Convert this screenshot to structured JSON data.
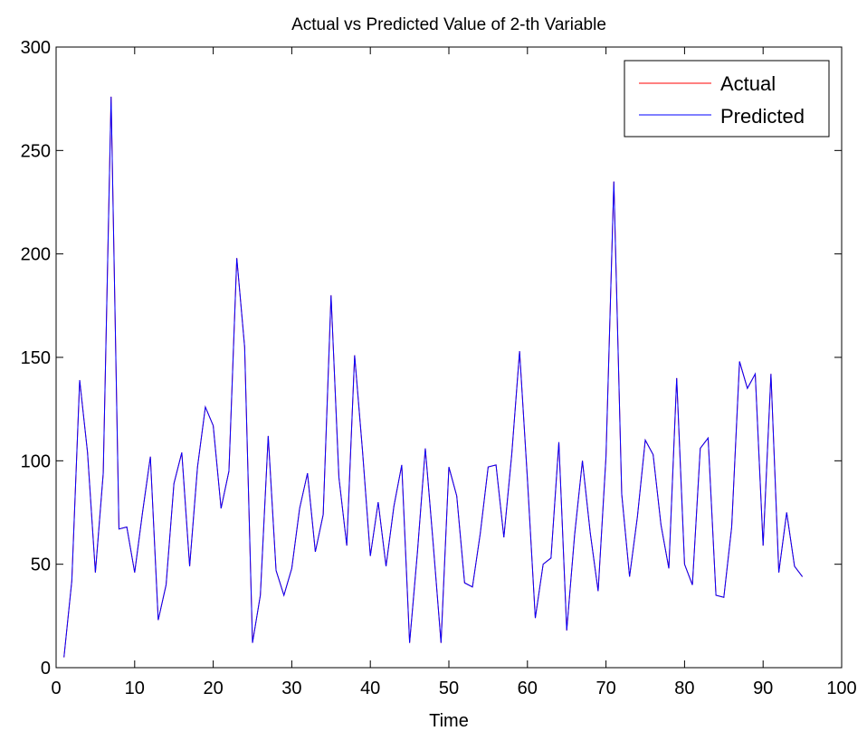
{
  "chart_data": {
    "type": "line",
    "title": "Actual vs Predicted Value of 2-th Variable",
    "xlabel": "Time",
    "ylabel": "",
    "xlim": [
      0,
      100
    ],
    "ylim": [
      0,
      300
    ],
    "xticks": [
      0,
      10,
      20,
      30,
      40,
      50,
      60,
      70,
      80,
      90,
      100
    ],
    "yticks": [
      0,
      50,
      100,
      150,
      200,
      250,
      300
    ],
    "grid": false,
    "legend_position": "top-right",
    "x": [
      1,
      2,
      3,
      4,
      5,
      6,
      7,
      8,
      9,
      10,
      11,
      12,
      13,
      14,
      15,
      16,
      17,
      18,
      19,
      20,
      21,
      22,
      23,
      24,
      25,
      26,
      27,
      28,
      29,
      30,
      31,
      32,
      33,
      34,
      35,
      36,
      37,
      38,
      39,
      40,
      41,
      42,
      43,
      44,
      45,
      46,
      47,
      48,
      49,
      50,
      51,
      52,
      53,
      54,
      55,
      56,
      57,
      58,
      59,
      60,
      61,
      62,
      63,
      64,
      65,
      66,
      67,
      68,
      69,
      70,
      71,
      72,
      73,
      74,
      75,
      76,
      77,
      78,
      79,
      80,
      81,
      82,
      83,
      84,
      85,
      86,
      87,
      88,
      89,
      90,
      91,
      92,
      93,
      94,
      95
    ],
    "series": [
      {
        "name": "Actual",
        "color": "#ff0000",
        "values": [
          5,
          42,
          139,
          104,
          46,
          94,
          276,
          67,
          68,
          46,
          75,
          102,
          23,
          40,
          89,
          104,
          49,
          97,
          126,
          117,
          77,
          95,
          198,
          155,
          12,
          35,
          112,
          47,
          35,
          48,
          77,
          94,
          56,
          74,
          180,
          92,
          59,
          151,
          105,
          54,
          80,
          49,
          78,
          98,
          12,
          56,
          106,
          60,
          12,
          97,
          83,
          41,
          39,
          65,
          97,
          98,
          63,
          103,
          153,
          91,
          24,
          50,
          53,
          109,
          18,
          64,
          100,
          65,
          37,
          102,
          235,
          84,
          44,
          73,
          110,
          103,
          69,
          48,
          140,
          50,
          40,
          106,
          111,
          35,
          34,
          68,
          148,
          135,
          142,
          59,
          142,
          46,
          75,
          49,
          44
        ]
      },
      {
        "name": "Predicted",
        "color": "#0000ff",
        "values": [
          5,
          42,
          139,
          104,
          46,
          94,
          276,
          67,
          68,
          46,
          75,
          102,
          23,
          40,
          89,
          104,
          49,
          97,
          126,
          117,
          77,
          95,
          198,
          155,
          12,
          35,
          112,
          47,
          35,
          48,
          77,
          94,
          56,
          74,
          180,
          92,
          59,
          151,
          105,
          54,
          80,
          49,
          78,
          98,
          12,
          56,
          106,
          60,
          12,
          97,
          83,
          41,
          39,
          65,
          97,
          98,
          63,
          103,
          153,
          91,
          24,
          50,
          53,
          109,
          18,
          64,
          100,
          65,
          37,
          102,
          235,
          84,
          44,
          73,
          110,
          103,
          69,
          48,
          140,
          50,
          40,
          106,
          111,
          35,
          34,
          68,
          148,
          135,
          142,
          59,
          142,
          46,
          75,
          49,
          44
        ]
      }
    ]
  }
}
